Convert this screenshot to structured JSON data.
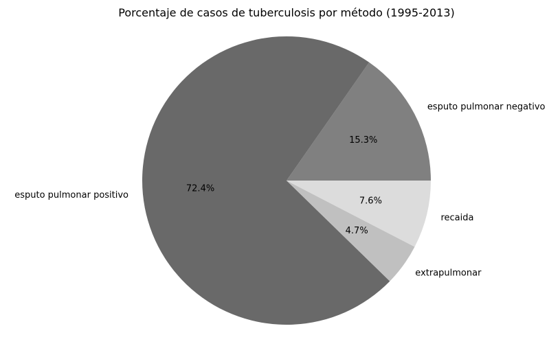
{
  "chart_data": {
    "type": "pie",
    "title": "Porcentaje de casos de tuberculosis por método (1995-2013)",
    "start_angle_deg": 0,
    "direction": "counterclockwise",
    "slices": [
      {
        "label": "esputo pulmonar negativo",
        "value": 15.3,
        "pct_label": "15.3%",
        "color": "#808080"
      },
      {
        "label": "esputo pulmonar positivo",
        "value": 72.4,
        "pct_label": "72.4%",
        "color": "#696969"
      },
      {
        "label": "extrapulmonar",
        "value": 4.7,
        "pct_label": "4.7%",
        "color": "#c0c0c0"
      },
      {
        "label": "recaida",
        "value": 7.6,
        "pct_label": "7.6%",
        "color": "#dcdcdc"
      }
    ]
  }
}
